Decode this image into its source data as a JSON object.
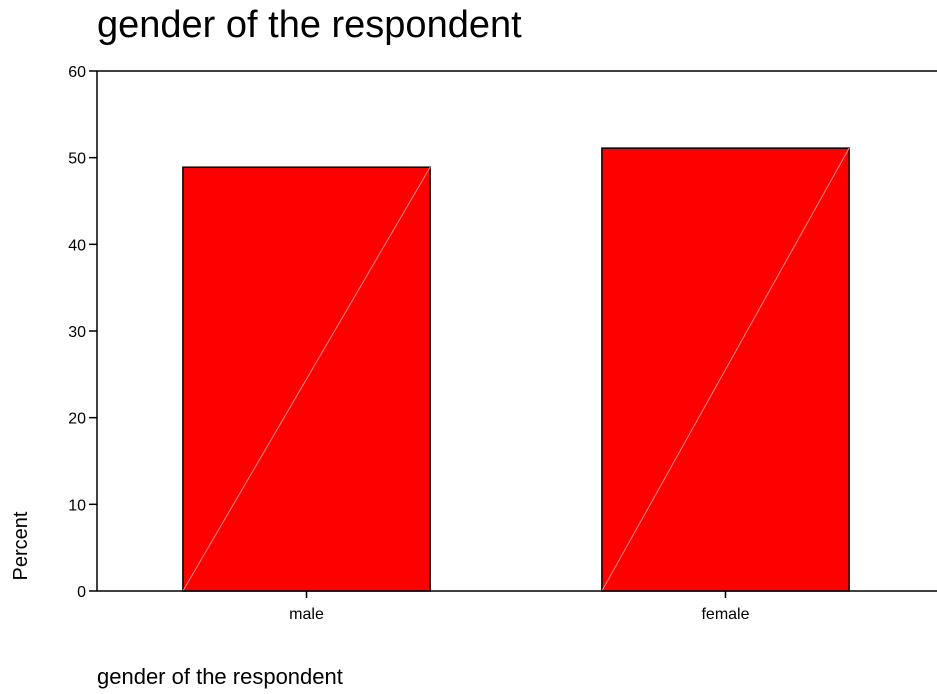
{
  "chart_data": {
    "type": "bar",
    "title": "gender of the respondent",
    "xlabel": "gender of the respondent",
    "ylabel": "Percent",
    "categories": [
      "male",
      "female"
    ],
    "values": [
      48.9,
      51.1
    ],
    "ylim": [
      0,
      60
    ],
    "yticks": [
      0,
      10,
      20,
      30,
      40,
      50,
      60
    ],
    "grid": false,
    "legend": "none",
    "bar_color": "#ff0000",
    "bar_outline_color": "#000000"
  }
}
